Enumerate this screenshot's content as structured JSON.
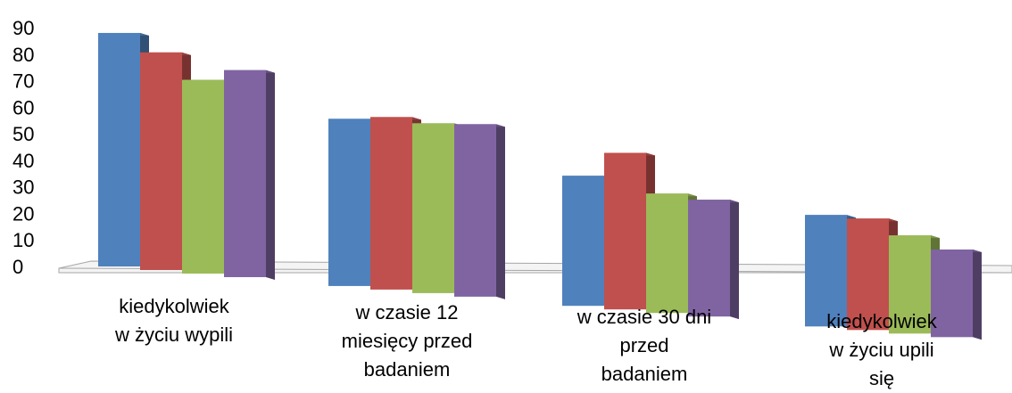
{
  "chart_data": {
    "type": "bar",
    "title": "",
    "xlabel": "",
    "ylabel": "",
    "ylim": [
      0,
      90
    ],
    "yticks": [
      0,
      10,
      20,
      30,
      40,
      50,
      60,
      70,
      80,
      90
    ],
    "grid": false,
    "legend": "none",
    "style": "3d-perspective",
    "categories": [
      [
        "kiedykolwiek",
        "w życiu wypili"
      ],
      [
        "w czasie 12",
        "miesięcy przed",
        "badaniem"
      ],
      [
        "w czasie 30 dni",
        "przed",
        "badaniem"
      ],
      [
        "kiedykolwiek",
        "w życiu upili",
        "się"
      ]
    ],
    "series": [
      {
        "color": "#4F81BD",
        "values": [
          88,
          63,
          49,
          42
        ]
      },
      {
        "color": "#C0504D",
        "values": [
          82,
          65,
          59,
          42
        ]
      },
      {
        "color": "#9BBB59",
        "values": [
          73,
          64,
          45,
          37
        ]
      },
      {
        "color": "#8064A2",
        "values": [
          78,
          65,
          44,
          33
        ]
      }
    ]
  }
}
